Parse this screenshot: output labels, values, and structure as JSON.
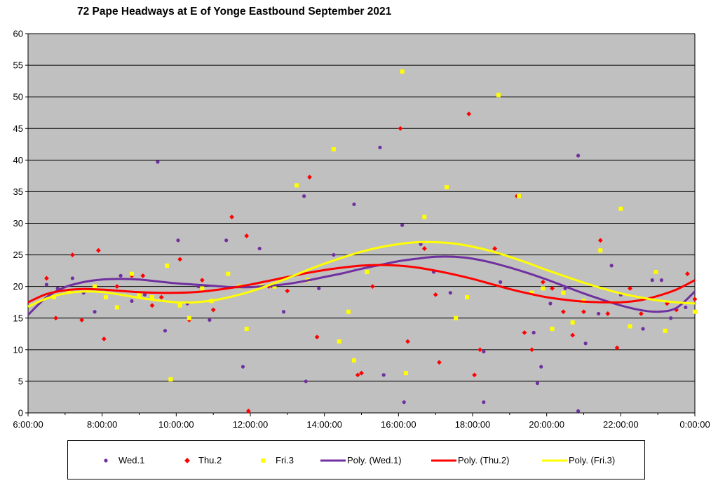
{
  "title": "72 Pape Headways at E of Yonge Eastbound September 2021",
  "colors": {
    "plot_bg": "#c0c0c0",
    "wed": "#7030a0",
    "thu": "#ff0000",
    "fri": "#ffff00",
    "grid": "#000000"
  },
  "chart_data": {
    "type": "scatter",
    "xlim_hours": [
      6,
      24
    ],
    "ylim": [
      0,
      60
    ],
    "y_ticks": [
      "0",
      "5",
      "10",
      "15",
      "20",
      "25",
      "30",
      "35",
      "40",
      "45",
      "50",
      "55",
      "60"
    ],
    "x_ticks": [
      "6:00:00",
      "8:00:00",
      "10:00:00",
      "12:00:00",
      "14:00:00",
      "16:00:00",
      "18:00:00",
      "20:00:00",
      "22:00:00",
      "0:00:00"
    ],
    "grid": "horizontal",
    "legend_position": "bottom",
    "series": [
      {
        "name": "Wed.1",
        "marker": "circle",
        "color": "#7030a0",
        "points": [
          [
            6.5,
            20.3
          ],
          [
            6.8,
            19.7
          ],
          [
            7.2,
            21.3
          ],
          [
            7.5,
            19
          ],
          [
            7.8,
            16
          ],
          [
            8.1,
            18.3
          ],
          [
            8.5,
            21.7
          ],
          [
            8.8,
            17.7
          ],
          [
            9.15,
            18.7
          ],
          [
            9.5,
            39.7
          ],
          [
            9.7,
            13
          ],
          [
            10.05,
            27.3
          ],
          [
            10.3,
            17.3
          ],
          [
            10.6,
            20
          ],
          [
            10.9,
            14.7
          ],
          [
            11.35,
            27.3
          ],
          [
            11.8,
            7.3
          ],
          [
            12.25,
            26
          ],
          [
            12.6,
            20
          ],
          [
            12.9,
            16
          ],
          [
            13.45,
            34.3
          ],
          [
            13.5,
            5
          ],
          [
            13.85,
            19.7
          ],
          [
            14.25,
            25
          ],
          [
            14.8,
            33
          ],
          [
            15.5,
            42
          ],
          [
            15.6,
            6
          ],
          [
            16.1,
            29.7
          ],
          [
            16.15,
            1.7
          ],
          [
            16.6,
            26.7
          ],
          [
            16.95,
            22.3
          ],
          [
            17.4,
            19
          ],
          [
            18.3,
            9.7
          ],
          [
            18.3,
            1.7
          ],
          [
            18.75,
            20.7
          ],
          [
            19.2,
            34.3
          ],
          [
            19.65,
            12.7
          ],
          [
            19.75,
            4.7
          ],
          [
            19.85,
            7.3
          ],
          [
            20.1,
            17.3
          ],
          [
            20.5,
            19.7
          ],
          [
            20.85,
            40.7
          ],
          [
            20.85,
            0.3
          ],
          [
            21.05,
            11
          ],
          [
            21.4,
            15.7
          ],
          [
            21.75,
            23.3
          ],
          [
            22,
            18.7
          ],
          [
            22.6,
            13.3
          ],
          [
            22.85,
            21
          ],
          [
            23.1,
            21
          ],
          [
            23.35,
            15
          ],
          [
            23.75,
            16.7
          ]
        ]
      },
      {
        "name": "Thu.2",
        "marker": "diamond",
        "color": "#ff0000",
        "points": [
          [
            6.5,
            21.3
          ],
          [
            6.75,
            15
          ],
          [
            7.2,
            25
          ],
          [
            7.45,
            14.7
          ],
          [
            7.9,
            25.7
          ],
          [
            8.05,
            11.7
          ],
          [
            8.4,
            20
          ],
          [
            8.8,
            21.7
          ],
          [
            9.1,
            21.7
          ],
          [
            9.35,
            17
          ],
          [
            9.6,
            18.3
          ],
          [
            10.1,
            24.3
          ],
          [
            10.35,
            14.7
          ],
          [
            10.7,
            21
          ],
          [
            11,
            16.3
          ],
          [
            11.5,
            31
          ],
          [
            11.9,
            28
          ],
          [
            11.95,
            0.3
          ],
          [
            12.5,
            20
          ],
          [
            13,
            19.3
          ],
          [
            13.6,
            37.3
          ],
          [
            13.8,
            12
          ],
          [
            14.9,
            6
          ],
          [
            15.0,
            6.3
          ],
          [
            15.3,
            20
          ],
          [
            16.05,
            45
          ],
          [
            16.25,
            11.3
          ],
          [
            16.7,
            26
          ],
          [
            17.0,
            18.7
          ],
          [
            17.1,
            8
          ],
          [
            17.9,
            47.3
          ],
          [
            18.05,
            6
          ],
          [
            18.2,
            10
          ],
          [
            18.6,
            26
          ],
          [
            19.2,
            34.3
          ],
          [
            19.4,
            12.7
          ],
          [
            19.6,
            10
          ],
          [
            19.9,
            20.7
          ],
          [
            20.15,
            19.7
          ],
          [
            20.45,
            16
          ],
          [
            20.7,
            12.3
          ],
          [
            21.0,
            16
          ],
          [
            21.45,
            27.3
          ],
          [
            21.65,
            15.7
          ],
          [
            21.9,
            10.3
          ],
          [
            22.25,
            19.7
          ],
          [
            22.55,
            15.7
          ],
          [
            22.95,
            22.3
          ],
          [
            23.25,
            17.3
          ],
          [
            23.5,
            16.3
          ],
          [
            23.8,
            22
          ],
          [
            24,
            18
          ]
        ]
      },
      {
        "name": "Fri.3",
        "marker": "square",
        "color": "#ffff00",
        "points": [
          [
            6.7,
            18.3
          ],
          [
            7.1,
            19.3
          ],
          [
            7.8,
            20
          ],
          [
            8.1,
            18.3
          ],
          [
            8.4,
            16.7
          ],
          [
            8.8,
            22
          ],
          [
            9.0,
            18.7
          ],
          [
            9.35,
            18.3
          ],
          [
            9.75,
            23.3
          ],
          [
            9.85,
            5.3
          ],
          [
            10.1,
            17
          ],
          [
            10.35,
            15
          ],
          [
            10.7,
            19.7
          ],
          [
            10.95,
            17.7
          ],
          [
            11.4,
            22
          ],
          [
            11.7,
            20
          ],
          [
            11.9,
            13.3
          ],
          [
            12.3,
            20
          ],
          [
            12.65,
            20
          ],
          [
            13.25,
            36
          ],
          [
            13.55,
            21
          ],
          [
            14.25,
            41.7
          ],
          [
            14.4,
            11.3
          ],
          [
            14.65,
            16
          ],
          [
            14.8,
            8.3
          ],
          [
            15.15,
            22.3
          ],
          [
            16.1,
            54
          ],
          [
            16.2,
            6.3
          ],
          [
            16.7,
            31
          ],
          [
            17.3,
            35.7
          ],
          [
            17.55,
            15
          ],
          [
            17.85,
            18.3
          ],
          [
            18.7,
            50.3
          ],
          [
            19.25,
            34.3
          ],
          [
            19.6,
            19
          ],
          [
            19.9,
            19.7
          ],
          [
            20.15,
            13.3
          ],
          [
            20.45,
            19
          ],
          [
            20.7,
            14.3
          ],
          [
            21.0,
            17.7
          ],
          [
            21.45,
            25.7
          ],
          [
            22.0,
            32.3
          ],
          [
            22.25,
            13.7
          ],
          [
            22.95,
            22.3
          ],
          [
            23.2,
            13
          ],
          [
            24,
            16
          ]
        ]
      },
      {
        "name": "Poly. (Wed.1)",
        "type": "trendline",
        "color": "#7030a0",
        "curve": [
          [
            6,
            15.5
          ],
          [
            6.5,
            18.3
          ],
          [
            7,
            19.9
          ],
          [
            7.5,
            20.7
          ],
          [
            8,
            21.1
          ],
          [
            8.5,
            21.2
          ],
          [
            9,
            21.1
          ],
          [
            9.5,
            20.8
          ],
          [
            10,
            20.5
          ],
          [
            10.5,
            20.3
          ],
          [
            11,
            20.1
          ],
          [
            11.5,
            19.9
          ],
          [
            12,
            19.9
          ],
          [
            12.5,
            20.1
          ],
          [
            13,
            20.4
          ],
          [
            13.5,
            20.9
          ],
          [
            14,
            21.5
          ],
          [
            14.5,
            22.1
          ],
          [
            15,
            22.8
          ],
          [
            15.5,
            23.4
          ],
          [
            16,
            24
          ],
          [
            16.5,
            24.4
          ],
          [
            17,
            24.7
          ],
          [
            17.5,
            24.7
          ],
          [
            18,
            24.4
          ],
          [
            18.5,
            23.8
          ],
          [
            19,
            23
          ],
          [
            19.5,
            22.1
          ],
          [
            20,
            21.1
          ],
          [
            20.5,
            20
          ],
          [
            21,
            18.9
          ],
          [
            21.5,
            17.9
          ],
          [
            22,
            17
          ],
          [
            22.5,
            16.3
          ],
          [
            23,
            16
          ],
          [
            23.5,
            16.6
          ],
          [
            24,
            19.2
          ]
        ]
      },
      {
        "name": "Poly. (Thu.2)",
        "type": "trendline",
        "color": "#ff0000",
        "curve": [
          [
            6,
            17.5
          ],
          [
            6.5,
            18.8
          ],
          [
            7,
            19.4
          ],
          [
            7.5,
            19.6
          ],
          [
            8,
            19.5
          ],
          [
            8.5,
            19.3
          ],
          [
            9,
            19.1
          ],
          [
            9.5,
            19
          ],
          [
            10,
            19
          ],
          [
            10.5,
            19.1
          ],
          [
            11,
            19.4
          ],
          [
            11.5,
            19.8
          ],
          [
            12,
            20.3
          ],
          [
            12.5,
            20.9
          ],
          [
            13,
            21.5
          ],
          [
            13.5,
            22.1
          ],
          [
            14,
            22.6
          ],
          [
            14.5,
            23
          ],
          [
            15,
            23.3
          ],
          [
            15.5,
            23.4
          ],
          [
            16,
            23.3
          ],
          [
            16.5,
            23
          ],
          [
            17,
            22.5
          ],
          [
            17.5,
            21.9
          ],
          [
            18,
            21.2
          ],
          [
            18.5,
            20.4
          ],
          [
            19,
            19.6
          ],
          [
            19.5,
            18.9
          ],
          [
            20,
            18.3
          ],
          [
            20.5,
            17.9
          ],
          [
            21,
            17.6
          ],
          [
            21.5,
            17.5
          ],
          [
            22,
            17.5
          ],
          [
            22.5,
            17.8
          ],
          [
            23,
            18.5
          ],
          [
            23.5,
            19.5
          ],
          [
            24,
            21
          ]
        ]
      },
      {
        "name": "Poly. (Fri.3)",
        "type": "trendline",
        "color": "#ffff00",
        "curve": [
          [
            6,
            16.8
          ],
          [
            6.5,
            18.1
          ],
          [
            7,
            18.9
          ],
          [
            7.5,
            19.2
          ],
          [
            8,
            19.1
          ],
          [
            8.5,
            18.7
          ],
          [
            9,
            18.2
          ],
          [
            9.5,
            17.8
          ],
          [
            10,
            17.5
          ],
          [
            10.5,
            17.5
          ],
          [
            11,
            17.8
          ],
          [
            11.5,
            18.4
          ],
          [
            12,
            19.2
          ],
          [
            12.5,
            20.2
          ],
          [
            13,
            21.3
          ],
          [
            13.5,
            22.5
          ],
          [
            14,
            23.6
          ],
          [
            14.5,
            24.6
          ],
          [
            15,
            25.5
          ],
          [
            15.5,
            26.2
          ],
          [
            16,
            26.7
          ],
          [
            16.5,
            27
          ],
          [
            17,
            27
          ],
          [
            17.5,
            26.8
          ],
          [
            18,
            26.3
          ],
          [
            18.5,
            25.6
          ],
          [
            19,
            24.7
          ],
          [
            19.5,
            23.7
          ],
          [
            20,
            22.6
          ],
          [
            20.5,
            21.6
          ],
          [
            21,
            20.6
          ],
          [
            21.5,
            19.7
          ],
          [
            22,
            18.9
          ],
          [
            22.5,
            18.3
          ],
          [
            23,
            17.8
          ],
          [
            23.5,
            17.5
          ],
          [
            24,
            17.3
          ]
        ]
      }
    ]
  },
  "legend": [
    {
      "label": "Wed.1",
      "kind": "circle",
      "color": "#7030a0"
    },
    {
      "label": "Thu.2",
      "kind": "diamond",
      "color": "#ff0000"
    },
    {
      "label": "Fri.3",
      "kind": "square",
      "color": "#ffff00"
    },
    {
      "label": "Poly. (Wed.1)",
      "kind": "line",
      "color": "#7030a0"
    },
    {
      "label": "Poly. (Thu.2)",
      "kind": "line",
      "color": "#ff0000"
    },
    {
      "label": "Poly. (Fri.3)",
      "kind": "line",
      "color": "#ffff00"
    }
  ]
}
